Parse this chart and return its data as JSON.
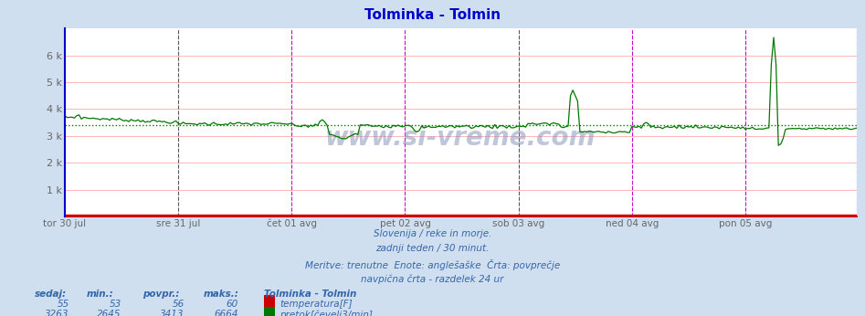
{
  "title": "Tolminka - Tolmin",
  "title_color": "#0000cc",
  "bg_color": "#d0dff0",
  "plot_bg_color": "#ffffff",
  "x_labels": [
    "tor 30 jul",
    "sre 31 jul",
    "čet 01 avg",
    "pet 02 avg",
    "sob 03 avg",
    "ned 04 avg",
    "pon 05 avg"
  ],
  "n_points": 336,
  "ylim": [
    0,
    7000
  ],
  "yticks": [
    0,
    1000,
    2000,
    3000,
    4000,
    5000,
    6000
  ],
  "ytick_labels": [
    "",
    "1 k",
    "2 k",
    "3 k",
    "4 k",
    "5 k",
    "6 k"
  ],
  "temp_color": "#cc0000",
  "flow_color": "#007700",
  "avg_flow_color": "#007700",
  "temp_sedaj": 55,
  "temp_min": 53,
  "temp_povpr": 56,
  "temp_maks": 60,
  "flow_sedaj": 3263,
  "flow_min": 2645,
  "flow_povpr": 3413,
  "flow_maks": 6664,
  "grid_color": "#ffaaaa",
  "grid_vert_color": "#aaaacc",
  "vline_magenta": "#cc00cc",
  "vline_dark": "#555566",
  "text_color": "#3366aa",
  "footer_lines": [
    "Slovenija / reke in morje.",
    "zadnji teden / 30 minut.",
    "Meritve: trenutne  Enote: anglešaške  Črta: povprečje",
    "navpična črta - razdelek 24 ur"
  ],
  "magenta_day_indices": [
    2,
    3,
    5,
    6
  ],
  "dark_day_indices": [
    1,
    4
  ]
}
